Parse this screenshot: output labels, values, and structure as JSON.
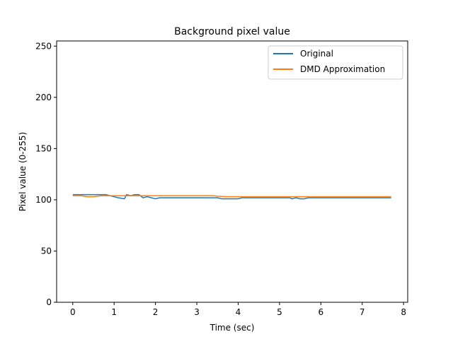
{
  "chart_data": {
    "type": "line",
    "title": "Background pixel value",
    "xlabel": "Time (sec)",
    "ylabel": "Pixel value (0-255)",
    "xlim": [
      -0.39,
      8.1
    ],
    "ylim": [
      0,
      255
    ],
    "xticks": [
      0,
      1,
      2,
      3,
      4,
      5,
      6,
      7,
      8
    ],
    "yticks": [
      0,
      50,
      100,
      150,
      200,
      250
    ],
    "grid": false,
    "legend_position": "upper right",
    "series": [
      {
        "name": "Original",
        "color": "#1f77b4",
        "x": [
          0,
          0.2,
          0.4,
          0.6,
          0.8,
          1.0,
          1.1,
          1.25,
          1.3,
          1.4,
          1.5,
          1.6,
          1.7,
          1.8,
          1.9,
          2.0,
          2.1,
          2.5,
          3.0,
          3.5,
          3.6,
          3.8,
          4.0,
          4.1,
          4.5,
          5.0,
          5.25,
          5.3,
          5.4,
          5.5,
          5.6,
          5.7,
          6.0,
          7.0,
          7.7
        ],
        "y": [
          105,
          105,
          105,
          105,
          105,
          103,
          102,
          101,
          105,
          104,
          105,
          105,
          102,
          103,
          102,
          101,
          102,
          102,
          102,
          102,
          101,
          101,
          101,
          102,
          102,
          102,
          102,
          101,
          102,
          101,
          101,
          102,
          102,
          102,
          102
        ]
      },
      {
        "name": "DMD Approximation",
        "color": "#ff7f0e",
        "x": [
          0,
          0.2,
          0.35,
          0.5,
          0.7,
          0.9,
          1.0,
          1.2,
          1.5,
          1.8,
          2.0,
          2.5,
          3.0,
          3.4,
          3.5,
          3.7,
          4.0,
          5.0,
          6.0,
          7.0,
          7.7
        ],
        "y": [
          104,
          104,
          103,
          103,
          104,
          104,
          104,
          104,
          104,
          104,
          104,
          104,
          104,
          104,
          103.5,
          103,
          103,
          103,
          103,
          103,
          103
        ]
      }
    ]
  }
}
